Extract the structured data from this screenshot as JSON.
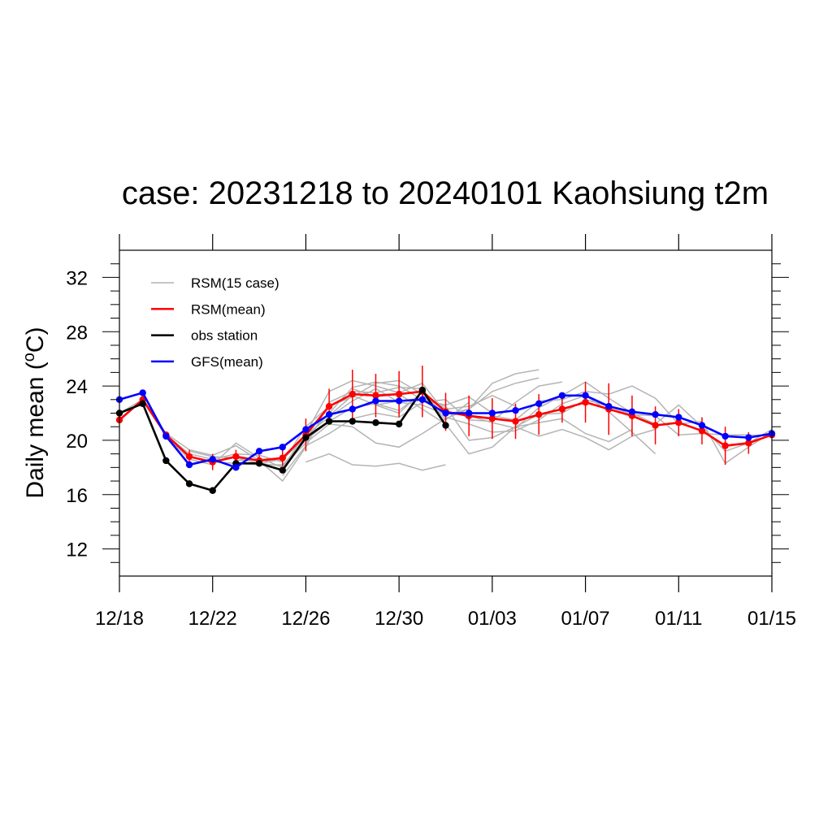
{
  "chart_data": {
    "type": "line",
    "title": "case: 20231218 to 20240101 Kaohsiung t2m",
    "ylabel": "Daily mean",
    "yunit_prefix": "(",
    "yunit_sup": "o",
    "yunit_suffix": "C)",
    "xlabel": "",
    "xlim": [
      "2023-12-18",
      "2024-01-15"
    ],
    "ylim": [
      10,
      34
    ],
    "x_ticks": [
      {
        "date": "2023-12-18",
        "label": "12/18"
      },
      {
        "date": "2023-12-22",
        "label": "12/22"
      },
      {
        "date": "2023-12-26",
        "label": "12/26"
      },
      {
        "date": "2023-12-30",
        "label": "12/30"
      },
      {
        "date": "2024-01-03",
        "label": "01/03"
      },
      {
        "date": "2024-01-07",
        "label": "01/07"
      },
      {
        "date": "2024-01-11",
        "label": "01/11"
      },
      {
        "date": "2024-01-15",
        "label": "01/15"
      }
    ],
    "y_ticks": [
      12,
      16,
      20,
      24,
      28,
      32
    ],
    "grid": false,
    "legend_position": "top-left",
    "legend": [
      {
        "label": "RSM(15 case)",
        "color": "#b4b4b4"
      },
      {
        "label": "RSM(mean)",
        "color": "#ff0000"
      },
      {
        "label": "obs station",
        "color": "#000000"
      },
      {
        "label": "GFS(mean)",
        "color": "#0000ff"
      }
    ],
    "ensemble_members": [
      {
        "color": "#b4b4b4",
        "points": [
          [
            "2023-12-18",
            22.0
          ],
          [
            "2023-12-19",
            23.0
          ],
          [
            "2023-12-20",
            20.5
          ],
          [
            "2023-12-21",
            19.3
          ],
          [
            "2023-12-22",
            18.9
          ],
          [
            "2023-12-23",
            19.6
          ],
          [
            "2023-12-24",
            18.5
          ],
          [
            "2023-12-25",
            17.0
          ],
          [
            "2023-12-26",
            19.5
          ],
          [
            "2023-12-27",
            22.8
          ],
          [
            "2023-12-28",
            23.6
          ],
          [
            "2023-12-29",
            23.5
          ],
          [
            "2023-12-30",
            23.9
          ],
          [
            "2023-12-31",
            23.8
          ]
        ]
      },
      {
        "color": "#b4b4b4",
        "points": [
          [
            "2023-12-19",
            22.9
          ],
          [
            "2023-12-20",
            20.3
          ],
          [
            "2023-12-21",
            18.6
          ],
          [
            "2023-12-22",
            18.2
          ],
          [
            "2023-12-23",
            19.8
          ],
          [
            "2023-12-24",
            18.7
          ],
          [
            "2023-12-25",
            18.0
          ],
          [
            "2023-12-26",
            20.5
          ],
          [
            "2023-12-27",
            23.6
          ],
          [
            "2023-12-28",
            24.4
          ],
          [
            "2023-12-29",
            24.0
          ],
          [
            "2023-12-30",
            23.5
          ],
          [
            "2023-12-31",
            24.2
          ],
          [
            "2024-01-01",
            22.0
          ]
        ]
      },
      {
        "color": "#b4b4b4",
        "points": [
          [
            "2023-12-20",
            20.4
          ],
          [
            "2023-12-21",
            19.0
          ],
          [
            "2023-12-22",
            18.6
          ],
          [
            "2023-12-23",
            19.0
          ],
          [
            "2023-12-24",
            18.9
          ],
          [
            "2023-12-25",
            18.4
          ],
          [
            "2023-12-26",
            21.0
          ],
          [
            "2023-12-27",
            22.5
          ],
          [
            "2023-12-28",
            23.2
          ],
          [
            "2023-12-29",
            24.2
          ],
          [
            "2023-12-30",
            24.4
          ],
          [
            "2023-12-31",
            23.4
          ],
          [
            "2024-01-01",
            21.5
          ],
          [
            "2024-01-02",
            22.8
          ]
        ]
      },
      {
        "color": "#b4b4b4",
        "points": [
          [
            "2023-12-21",
            19.2
          ],
          [
            "2023-12-22",
            18.8
          ],
          [
            "2023-12-23",
            18.7
          ],
          [
            "2023-12-24",
            18.3
          ],
          [
            "2023-12-25",
            18.6
          ],
          [
            "2023-12-26",
            20.2
          ],
          [
            "2023-12-27",
            22.0
          ],
          [
            "2023-12-28",
            23.9
          ],
          [
            "2023-12-29",
            24.3
          ],
          [
            "2023-12-30",
            24.0
          ],
          [
            "2023-12-31",
            23.0
          ],
          [
            "2024-01-01",
            22.6
          ],
          [
            "2024-01-02",
            23.2
          ],
          [
            "2024-01-03",
            22.0
          ]
        ]
      },
      {
        "color": "#b4b4b4",
        "points": [
          [
            "2023-12-22",
            18.4
          ],
          [
            "2023-12-23",
            18.3
          ],
          [
            "2023-12-24",
            18.2
          ],
          [
            "2023-12-25",
            18.2
          ],
          [
            "2023-12-26",
            20.0
          ],
          [
            "2023-12-27",
            21.4
          ],
          [
            "2023-12-28",
            22.4
          ],
          [
            "2023-12-29",
            22.7
          ],
          [
            "2023-12-30",
            22.2
          ],
          [
            "2023-12-31",
            23.5
          ],
          [
            "2024-01-01",
            22.3
          ],
          [
            "2024-01-02",
            22.5
          ],
          [
            "2024-01-03",
            23.3
          ],
          [
            "2024-01-04",
            22.5
          ]
        ]
      },
      {
        "color": "#b4b4b4",
        "points": [
          [
            "2023-12-23",
            18.5
          ],
          [
            "2023-12-24",
            18.6
          ],
          [
            "2023-12-25",
            18.7
          ],
          [
            "2023-12-26",
            20.4
          ],
          [
            "2023-12-27",
            21.7
          ],
          [
            "2023-12-28",
            22.9
          ],
          [
            "2023-12-29",
            23.8
          ],
          [
            "2023-12-30",
            22.8
          ],
          [
            "2023-12-31",
            22.6
          ],
          [
            "2024-01-01",
            21.9
          ],
          [
            "2024-01-02",
            22.3
          ],
          [
            "2024-01-03",
            23.6
          ],
          [
            "2024-01-04",
            24.2
          ],
          [
            "2024-01-05",
            24.6
          ]
        ]
      },
      {
        "color": "#b4b4b4",
        "points": [
          [
            "2023-12-24",
            18.3
          ],
          [
            "2023-12-25",
            18.1
          ],
          [
            "2023-12-26",
            19.8
          ],
          [
            "2023-12-27",
            21.2
          ],
          [
            "2023-12-28",
            21.0
          ],
          [
            "2023-12-29",
            19.8
          ],
          [
            "2023-12-30",
            19.5
          ],
          [
            "2023-12-31",
            20.5
          ],
          [
            "2024-01-01",
            21.6
          ],
          [
            "2024-01-02",
            22.3
          ],
          [
            "2024-01-03",
            24.2
          ],
          [
            "2024-01-04",
            24.9
          ],
          [
            "2024-01-05",
            25.2
          ]
        ]
      },
      {
        "color": "#b4b4b4",
        "points": [
          [
            "2023-12-25",
            17.4
          ],
          [
            "2023-12-26",
            19.6
          ],
          [
            "2023-12-27",
            20.5
          ],
          [
            "2023-12-28",
            21.6
          ],
          [
            "2023-12-29",
            22.0
          ],
          [
            "2023-12-30",
            21.7
          ],
          [
            "2023-12-31",
            22.8
          ],
          [
            "2024-01-01",
            23.0
          ],
          [
            "2024-01-02",
            21.5
          ],
          [
            "2024-01-03",
            21.4
          ],
          [
            "2024-01-04",
            22.8
          ],
          [
            "2024-01-05",
            24.0
          ],
          [
            "2024-01-06",
            24.3
          ]
        ]
      },
      {
        "color": "#b4b4b4",
        "points": [
          [
            "2023-12-26",
            18.4
          ],
          [
            "2023-12-27",
            19.0
          ],
          [
            "2023-12-28",
            18.2
          ],
          [
            "2023-12-29",
            18.1
          ],
          [
            "2023-12-30",
            18.3
          ],
          [
            "2023-12-31",
            17.8
          ],
          [
            "2024-01-01",
            18.2
          ]
        ]
      },
      {
        "color": "#b4b4b4",
        "points": [
          [
            "2023-12-27",
            21.8
          ],
          [
            "2023-12-28",
            23.3
          ],
          [
            "2023-12-29",
            22.6
          ],
          [
            "2023-12-30",
            22.9
          ],
          [
            "2023-12-31",
            23.1
          ],
          [
            "2024-01-01",
            22.5
          ],
          [
            "2024-01-02",
            20.0
          ],
          [
            "2024-01-03",
            20.2
          ],
          [
            "2024-01-04",
            21.0
          ],
          [
            "2024-01-05",
            21.3
          ],
          [
            "2024-01-06",
            21.6
          ],
          [
            "2024-01-07",
            20.5
          ],
          [
            "2024-01-08",
            19.9
          ],
          [
            "2024-01-09",
            20.8
          ]
        ]
      },
      {
        "color": "#b4b4b4",
        "points": [
          [
            "2023-12-28",
            23.8
          ],
          [
            "2023-12-29",
            23.2
          ],
          [
            "2023-12-30",
            23.4
          ],
          [
            "2023-12-31",
            22.3
          ],
          [
            "2024-01-01",
            21.2
          ],
          [
            "2024-01-02",
            19.0
          ],
          [
            "2024-01-03",
            19.5
          ],
          [
            "2024-01-04",
            21.0
          ],
          [
            "2024-01-05",
            20.3
          ],
          [
            "2024-01-06",
            20.8
          ],
          [
            "2024-01-07",
            20.2
          ],
          [
            "2024-01-08",
            19.3
          ],
          [
            "2024-01-09",
            20.3
          ],
          [
            "2024-01-10",
            20.8
          ]
        ]
      },
      {
        "color": "#b4b4b4",
        "points": [
          [
            "2023-12-29",
            22.6
          ],
          [
            "2023-12-30",
            22.0
          ],
          [
            "2023-12-31",
            23.6
          ],
          [
            "2024-01-01",
            21.7
          ],
          [
            "2024-01-02",
            21.2
          ],
          [
            "2024-01-03",
            20.6
          ],
          [
            "2024-01-04",
            20.7
          ],
          [
            "2024-01-05",
            21.5
          ],
          [
            "2024-01-06",
            22.7
          ],
          [
            "2024-01-07",
            23.3
          ],
          [
            "2024-01-08",
            22.1
          ],
          [
            "2024-01-09",
            20.6
          ],
          [
            "2024-01-10",
            19.0
          ]
        ]
      },
      {
        "color": "#b4b4b4",
        "points": [
          [
            "2024-01-02",
            21.8
          ],
          [
            "2024-01-03",
            21.3
          ],
          [
            "2024-01-04",
            20.9
          ],
          [
            "2024-01-05",
            22.4
          ],
          [
            "2024-01-06",
            23.3
          ],
          [
            "2024-01-07",
            24.3
          ],
          [
            "2024-01-08",
            23.1
          ],
          [
            "2024-01-09",
            22.0
          ],
          [
            "2024-01-10",
            21.2
          ],
          [
            "2024-01-11",
            22.6
          ],
          [
            "2024-01-12",
            21.0
          ],
          [
            "2024-01-13",
            19.2
          ],
          [
            "2024-01-14",
            19.8
          ],
          [
            "2024-01-15",
            20.8
          ]
        ]
      },
      {
        "color": "#b4b4b4",
        "points": [
          [
            "2024-01-03",
            21.8
          ],
          [
            "2024-01-04",
            21.5
          ],
          [
            "2024-01-05",
            22.9
          ],
          [
            "2024-01-06",
            23.0
          ],
          [
            "2024-01-07",
            23.6
          ],
          [
            "2024-01-08",
            23.4
          ],
          [
            "2024-01-09",
            24.0
          ],
          [
            "2024-01-10",
            23.1
          ],
          [
            "2024-01-11",
            21.2
          ],
          [
            "2024-01-12",
            21.4
          ],
          [
            "2024-01-13",
            18.3
          ],
          [
            "2024-01-14",
            19.5
          ],
          [
            "2024-01-15",
            20.6
          ]
        ]
      },
      {
        "color": "#b4b4b4",
        "points": [
          [
            "2024-01-04",
            21.0
          ],
          [
            "2024-01-05",
            21.9
          ],
          [
            "2024-01-06",
            22.0
          ],
          [
            "2024-01-07",
            23.0
          ],
          [
            "2024-01-08",
            22.5
          ],
          [
            "2024-01-09",
            21.9
          ],
          [
            "2024-01-10",
            21.8
          ],
          [
            "2024-01-11",
            20.4
          ],
          [
            "2024-01-12",
            20.5
          ],
          [
            "2024-01-13",
            20.4
          ],
          [
            "2024-01-14",
            20.4
          ],
          [
            "2024-01-15",
            20.3
          ]
        ]
      }
    ],
    "series": [
      {
        "name": "RSM(mean)",
        "color": "#ff0000",
        "errorbars": true,
        "x": [
          "2023-12-18",
          "2023-12-19",
          "2023-12-20",
          "2023-12-21",
          "2023-12-22",
          "2023-12-23",
          "2023-12-24",
          "2023-12-25",
          "2023-12-26",
          "2023-12-27",
          "2023-12-28",
          "2023-12-29",
          "2023-12-30",
          "2023-12-31",
          "2024-01-01",
          "2024-01-02",
          "2024-01-03",
          "2024-01-04",
          "2024-01-05",
          "2024-01-06",
          "2024-01-07",
          "2024-01-08",
          "2024-01-09",
          "2024-01-10",
          "2024-01-11",
          "2024-01-12",
          "2024-01-13",
          "2024-01-14",
          "2024-01-15"
        ],
        "y": [
          21.5,
          23.0,
          20.4,
          18.8,
          18.4,
          18.8,
          18.5,
          18.7,
          20.4,
          22.5,
          23.4,
          23.3,
          23.4,
          23.6,
          22.1,
          21.8,
          21.6,
          21.4,
          21.9,
          22.3,
          22.8,
          22.3,
          21.8,
          21.1,
          21.3,
          20.7,
          19.6,
          19.8,
          20.4
        ],
        "err": [
          0,
          0,
          0,
          0.5,
          0.6,
          0.5,
          0.4,
          0.6,
          1.2,
          1.3,
          1.8,
          1.6,
          1.7,
          1.9,
          1.4,
          1.5,
          1.5,
          1.3,
          1.5,
          1.0,
          1.5,
          1.9,
          1.5,
          1.4,
          1.0,
          1.0,
          1.4,
          0.8,
          0
        ]
      },
      {
        "name": "obs station",
        "color": "#000000",
        "errorbars": false,
        "x": [
          "2023-12-18",
          "2023-12-19",
          "2023-12-20",
          "2023-12-21",
          "2023-12-22",
          "2023-12-23",
          "2023-12-24",
          "2023-12-25",
          "2023-12-26",
          "2023-12-27",
          "2023-12-28",
          "2023-12-29",
          "2023-12-30",
          "2023-12-31",
          "2024-01-01"
        ],
        "y": [
          22.0,
          22.7,
          18.5,
          16.8,
          16.3,
          18.3,
          18.3,
          17.8,
          20.2,
          21.4,
          21.4,
          21.3,
          21.2,
          23.7,
          21.1
        ]
      },
      {
        "name": "GFS(mean)",
        "color": "#0000ff",
        "errorbars": false,
        "x": [
          "2023-12-18",
          "2023-12-19",
          "2023-12-20",
          "2023-12-21",
          "2023-12-22",
          "2023-12-23",
          "2023-12-24",
          "2023-12-25",
          "2023-12-26",
          "2023-12-27",
          "2023-12-28",
          "2023-12-29",
          "2023-12-30",
          "2023-12-31",
          "2024-01-01",
          "2024-01-02",
          "2024-01-03",
          "2024-01-04",
          "2024-01-05",
          "2024-01-06",
          "2024-01-07",
          "2024-01-08",
          "2024-01-09",
          "2024-01-10",
          "2024-01-11",
          "2024-01-12",
          "2024-01-13",
          "2024-01-14",
          "2024-01-15"
        ],
        "y": [
          23.0,
          23.5,
          20.3,
          18.2,
          18.6,
          18.0,
          19.2,
          19.5,
          20.8,
          21.9,
          22.3,
          22.9,
          22.9,
          23.0,
          22.0,
          22.0,
          22.0,
          22.2,
          22.7,
          23.3,
          23.3,
          22.5,
          22.1,
          21.9,
          21.7,
          21.1,
          20.3,
          20.2,
          20.5
        ]
      }
    ]
  }
}
